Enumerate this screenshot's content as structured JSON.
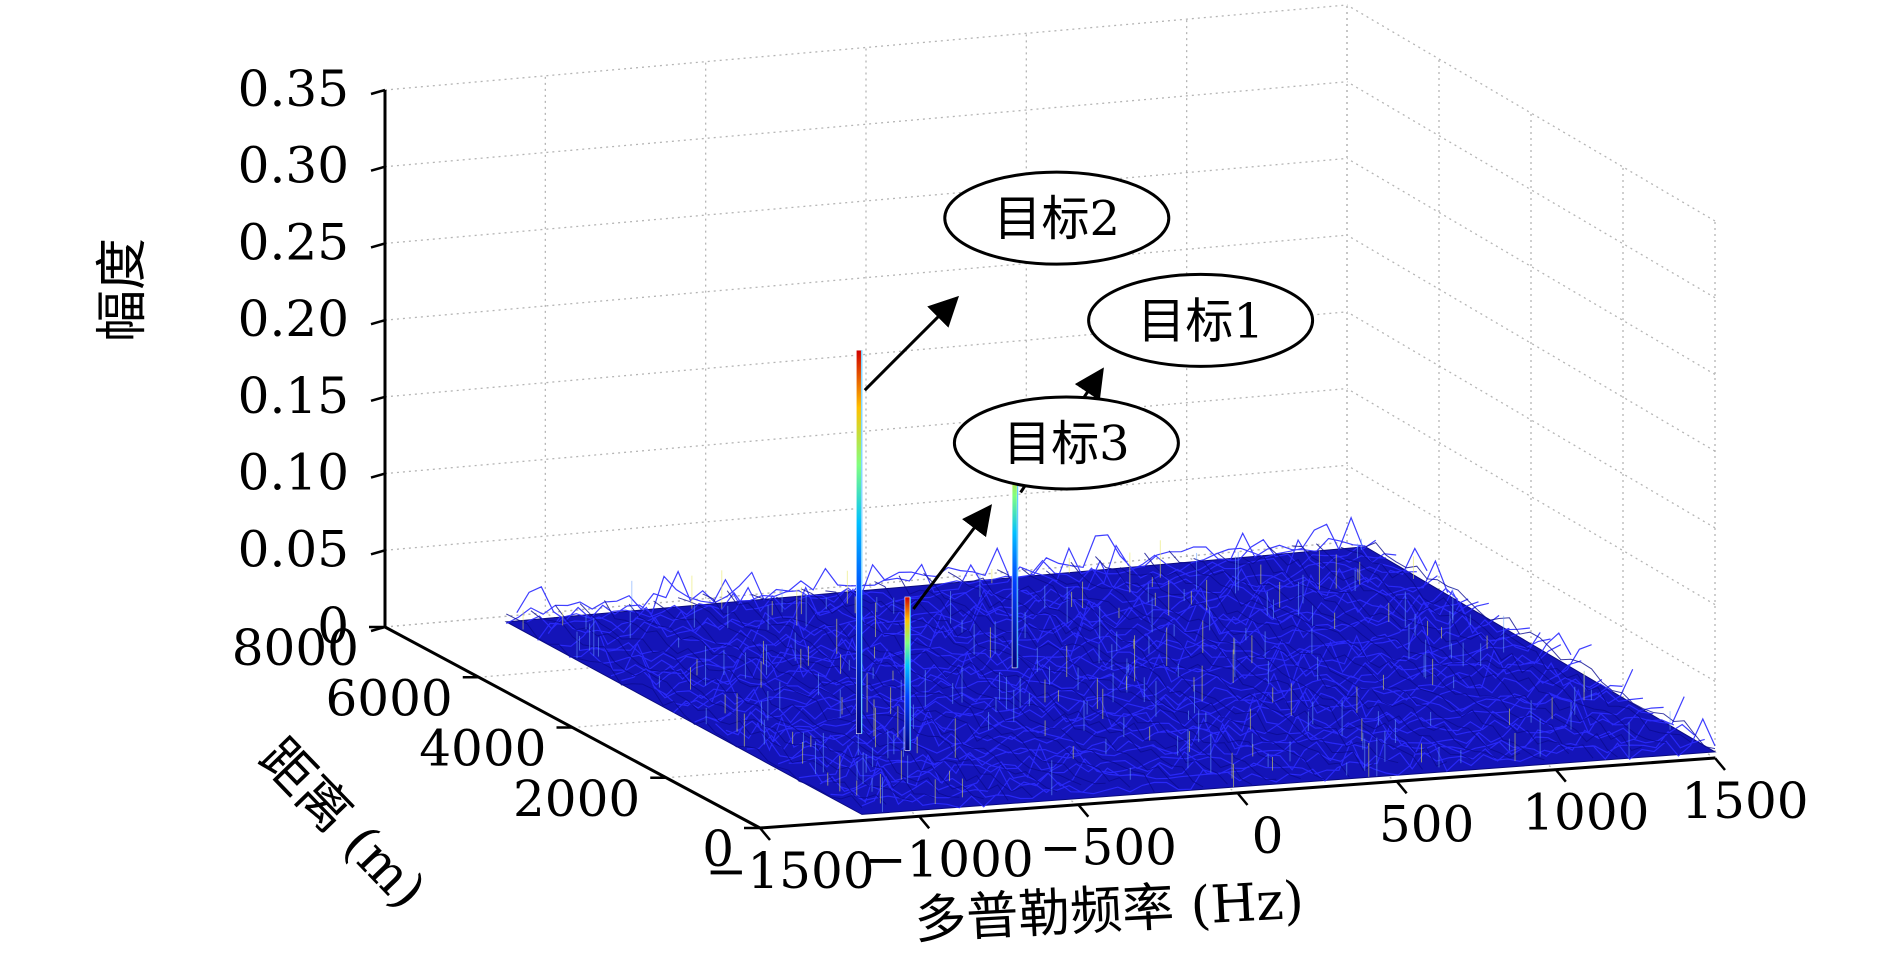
{
  "chart_data": {
    "type": "surface",
    "zlabel": "幅度",
    "ylabel": "距离 (m)",
    "xlabel": "多普勒频率 (Hz)",
    "z_ticks": [
      "0",
      "0.05",
      "0.10",
      "0.15",
      "0.20",
      "0.25",
      "0.30",
      "0.35"
    ],
    "y_ticks": [
      "0",
      "2000",
      "4000",
      "6000",
      "8000"
    ],
    "x_ticks": [
      "−1500",
      "−1000",
      "−500",
      "0",
      "500",
      "1000",
      "1500"
    ],
    "xlim": [
      -1500,
      1500
    ],
    "ylim": [
      0,
      8000
    ],
    "zlim": [
      0,
      0.35
    ],
    "grid": true,
    "surface_color": "#1a1acc",
    "targets": [
      {
        "label": "目标1",
        "doppler": 0,
        "range": 4800,
        "amplitude": 0.16
      },
      {
        "label": "目标2",
        "doppler": -750,
        "range": 3000,
        "amplitude": 0.25
      },
      {
        "label": "目标3",
        "doppler": -700,
        "range": 2300,
        "amplitude": 0.1
      }
    ]
  }
}
